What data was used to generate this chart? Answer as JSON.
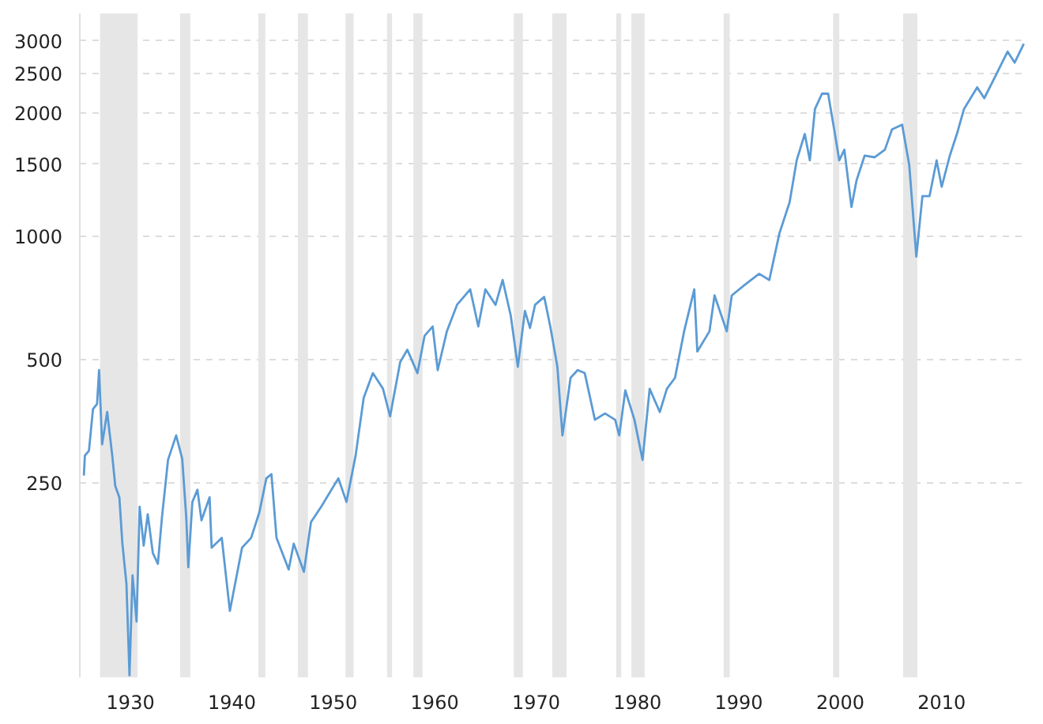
{
  "chart_data": {
    "type": "line",
    "log": "y",
    "grid": "y",
    "xlim": [
      1925,
      2018.2
    ],
    "ylim": [
      84,
      3500
    ],
    "xticks": [
      1930,
      1940,
      1950,
      1960,
      1970,
      1980,
      1990,
      2000,
      2010
    ],
    "yticks": [
      250,
      500,
      1000,
      1500,
      2000,
      2500,
      3000
    ],
    "x": [
      1925.4,
      1925.5,
      1925.9,
      1926.3,
      1926.7,
      1926.9,
      1927.2,
      1927.7,
      1928.2,
      1928.5,
      1928.9,
      1929.2,
      1929.6,
      1929.9,
      1930.2,
      1930.6,
      1930.9,
      1931.3,
      1931.7,
      1932.2,
      1932.7,
      1933.1,
      1933.7,
      1934.5,
      1935.1,
      1935.5,
      1935.7,
      1936.1,
      1936.6,
      1937,
      1937.8,
      1938,
      1939,
      1939.8,
      1941,
      1941.9,
      1942.7,
      1943.4,
      1943.9,
      1944.4,
      1945.6,
      1946.1,
      1947.1,
      1947.8,
      1948.8,
      1950.5,
      1951.3,
      1952.2,
      1953,
      1953.9,
      1954.9,
      1955.6,
      1956.6,
      1957.3,
      1958.3,
      1959,
      1959.8,
      1960.3,
      1961.2,
      1962.2,
      1963.5,
      1964.3,
      1965,
      1966,
      1966.7,
      1967.5,
      1968.2,
      1968.9,
      1969.4,
      1969.9,
      1970.8,
      1971.4,
      1972.1,
      1972.6,
      1973.4,
      1974.1,
      1974.8,
      1975.8,
      1976.8,
      1977.8,
      1978.2,
      1978.8,
      1979.7,
      1980.5,
      1981.2,
      1982.2,
      1982.9,
      1983.7,
      1984.6,
      1985.6,
      1985.9,
      1987.1,
      1987.6,
      1988.8,
      1989.3,
      1990.6,
      1992,
      1993,
      1994,
      1995,
      1995.7,
      1996.5,
      1997,
      1997.5,
      1998.2,
      1998.8,
      1999.4,
      1999.9,
      2000.4,
      2001.1,
      2001.6,
      2002.4,
      2003.4,
      2004.4,
      2005.1,
      2006.1,
      2006.8,
      2007.5,
      2008.1,
      2008.8,
      2009.5,
      2010,
      2010.8,
      2011.5,
      2012.2,
      2013.5,
      2014.2,
      2015.2,
      2016.5,
      2017.2,
      2018.1
    ],
    "series": [
      {
        "color": "#5b9bd5",
        "values": [
          261,
          292,
          300,
          379,
          390,
          472,
          311,
          373,
          292,
          246,
          231,
          178,
          142,
          85,
          149,
          115,
          219,
          176,
          210,
          169,
          159,
          206,
          285,
          327,
          287,
          206,
          156,
          225,
          241,
          203,
          231,
          174,
          184,
          122,
          174,
          184,
          212,
          257,
          263,
          184,
          154,
          178,
          152,
          201,
          219,
          257,
          225,
          292,
          404,
          464,
          425,
          364,
          494,
          529,
          464,
          572,
          603,
          472,
          587,
          681,
          743,
          603,
          743,
          681,
          783,
          641,
          481,
          658,
          598,
          681,
          712,
          603,
          481,
          327,
          452,
          472,
          464,
          357,
          370,
          357,
          327,
          421,
          357,
          285,
          425,
          373,
          425,
          452,
          587,
          743,
          524,
          587,
          718,
          587,
          718,
          763,
          811,
          783,
          1018,
          1211,
          1533,
          1778,
          1533,
          2046,
          2230,
          2230,
          1824,
          1533,
          1628,
          1180,
          1369,
          1574,
          1560,
          1628,
          1824,
          1874,
          1494,
          893,
          1254,
          1254,
          1533,
          1322,
          1574,
          1778,
          2046,
          2311,
          2174,
          2434,
          2824,
          2655,
          2951
        ]
      }
    ],
    "bands": [
      {
        "axis": "x",
        "from": 1927.0,
        "to": 1930.7,
        "color": "#e6e6e6"
      },
      {
        "axis": "x",
        "from": 1934.9,
        "to": 1935.9,
        "color": "#e6e6e6"
      },
      {
        "axis": "x",
        "from": 1942.6,
        "to": 1943.3,
        "color": "#e6e6e6"
      },
      {
        "axis": "x",
        "from": 1946.5,
        "to": 1947.5,
        "color": "#e6e6e6"
      },
      {
        "axis": "x",
        "from": 1951.2,
        "to": 1952.0,
        "color": "#e6e6e6"
      },
      {
        "axis": "x",
        "from": 1955.3,
        "to": 1955.8,
        "color": "#e6e6e6"
      },
      {
        "axis": "x",
        "from": 1957.9,
        "to": 1958.8,
        "color": "#e6e6e6"
      },
      {
        "axis": "x",
        "from": 1967.8,
        "to": 1968.7,
        "color": "#e6e6e6"
      },
      {
        "axis": "x",
        "from": 1971.6,
        "to": 1973.0,
        "color": "#e6e6e6"
      },
      {
        "axis": "x",
        "from": 1977.9,
        "to": 1978.4,
        "color": "#e6e6e6"
      },
      {
        "axis": "x",
        "from": 1979.4,
        "to": 1980.7,
        "color": "#e6e6e6"
      },
      {
        "axis": "x",
        "from": 1988.5,
        "to": 1989.1,
        "color": "#e6e6e6"
      },
      {
        "axis": "x",
        "from": 1999.3,
        "to": 1999.9,
        "color": "#e6e6e6"
      },
      {
        "axis": "x",
        "from": 2006.2,
        "to": 2007.6,
        "color": "#e6e6e6"
      }
    ]
  }
}
